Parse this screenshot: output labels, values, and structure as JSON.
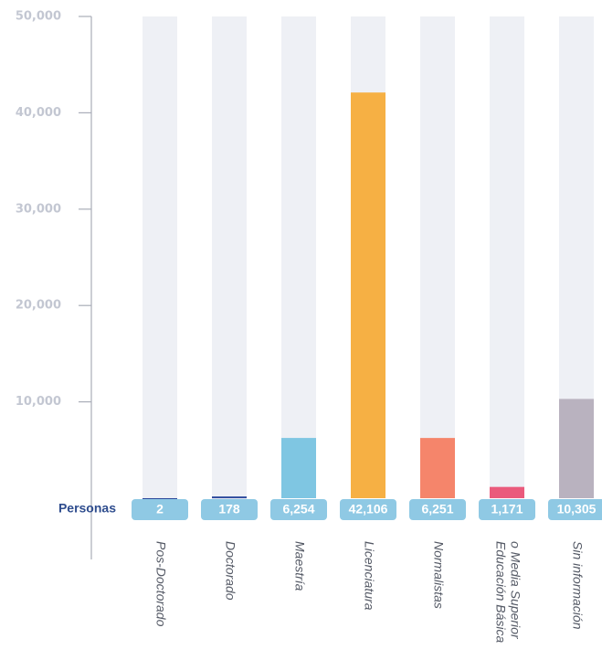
{
  "chart_data": {
    "type": "bar",
    "categories": [
      "Pos-Doctorado",
      "Doctorado",
      "Maestría",
      "Licenciatura",
      "Normalistas",
      [
        "Educación Básica",
        "o Media Superior"
      ],
      "Sin información"
    ],
    "values": [
      2,
      178,
      6254,
      42106,
      6251,
      1171,
      10305
    ],
    "value_labels": [
      "2",
      "178",
      "6,254",
      "42,106",
      "6,251",
      "1,171",
      "10,305"
    ],
    "value_label_title": "Personas",
    "colors": [
      "#2c4a9c",
      "#2c4a9c",
      "#7fc6e2",
      "#f6b044",
      "#f5856b",
      "#ea5a7c",
      "#b9b2bf"
    ],
    "ylim": [
      0,
      50000
    ],
    "yticks": [
      {
        "value": 10000,
        "label": "10,000"
      },
      {
        "value": 20000,
        "label": "20,000"
      },
      {
        "value": 30000,
        "label": "30,000"
      },
      {
        "value": 40000,
        "label": "40,000"
      },
      {
        "value": 50000,
        "label": "50,000"
      }
    ]
  }
}
